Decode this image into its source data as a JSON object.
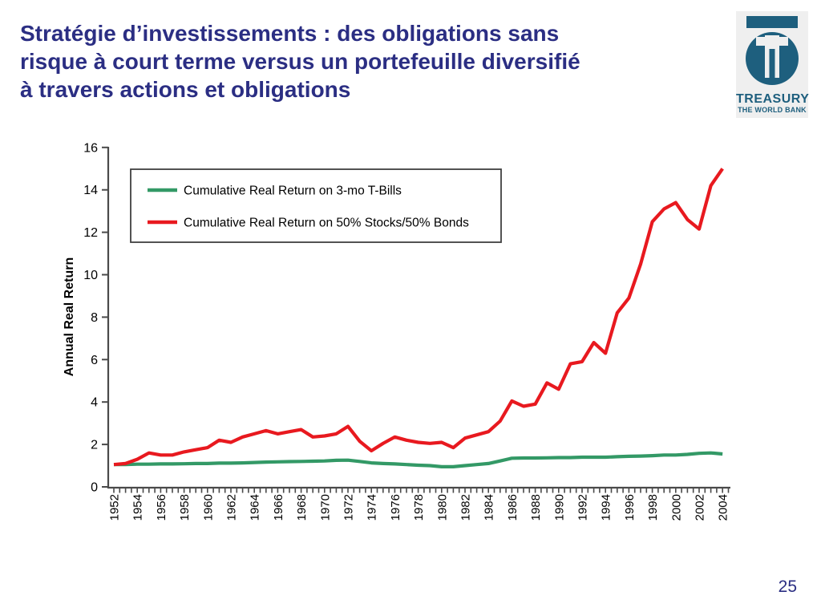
{
  "slide": {
    "title_lines": [
      "Stratégie d’investissements : des obligations sans",
      "risque à court terme versus un portefeuille diversifié",
      "à travers actions et obligations"
    ],
    "page_number": "25"
  },
  "logo": {
    "name": "treasury-the-world-bank-logo",
    "line1": "TREASURY",
    "line2": "THE WORLD BANK"
  },
  "colors": {
    "title_text": "#2B2E83",
    "logo_teal": "#1E5F7E",
    "axis": "#4A4A4A",
    "tbills_green": "#339966",
    "portfolio_red": "#E8191F"
  },
  "chart_data": {
    "type": "line",
    "title": "",
    "xlabel": "",
    "ylabel": "Annual Real Return",
    "ylim": [
      0,
      16
    ],
    "ytick_step": 2,
    "x_label_step": 2,
    "grid": false,
    "legend_position": "top-left-inside",
    "years": [
      1952,
      1953,
      1954,
      1955,
      1956,
      1957,
      1958,
      1959,
      1960,
      1961,
      1962,
      1963,
      1964,
      1965,
      1966,
      1967,
      1968,
      1969,
      1970,
      1971,
      1972,
      1973,
      1974,
      1975,
      1976,
      1977,
      1978,
      1979,
      1980,
      1981,
      1982,
      1983,
      1984,
      1985,
      1986,
      1987,
      1988,
      1989,
      1990,
      1991,
      1992,
      1993,
      1994,
      1995,
      1996,
      1997,
      1998,
      1999,
      2000,
      2001,
      2002,
      2003,
      2004
    ],
    "series": [
      {
        "name": "Cumulative Real Return on 3-mo T-Bills",
        "color": "#339966",
        "values": [
          1.05,
          1.05,
          1.07,
          1.07,
          1.08,
          1.08,
          1.09,
          1.1,
          1.1,
          1.12,
          1.12,
          1.13,
          1.15,
          1.17,
          1.18,
          1.19,
          1.2,
          1.21,
          1.22,
          1.25,
          1.26,
          1.2,
          1.13,
          1.1,
          1.08,
          1.05,
          1.02,
          1.0,
          0.95,
          0.95,
          1.0,
          1.05,
          1.1,
          1.22,
          1.35,
          1.36,
          1.36,
          1.37,
          1.38,
          1.38,
          1.4,
          1.4,
          1.4,
          1.42,
          1.44,
          1.45,
          1.47,
          1.5,
          1.5,
          1.53,
          1.58,
          1.6,
          1.55
        ]
      },
      {
        "name": "Cumulative Real Return on 50% Stocks/50% Bonds",
        "color": "#E8191F",
        "values": [
          1.05,
          1.1,
          1.3,
          1.6,
          1.5,
          1.5,
          1.65,
          1.75,
          1.85,
          2.2,
          2.1,
          2.35,
          2.5,
          2.65,
          2.5,
          2.6,
          2.7,
          2.35,
          2.4,
          2.5,
          2.85,
          2.15,
          1.7,
          2.05,
          2.35,
          2.2,
          2.1,
          2.05,
          2.1,
          1.85,
          2.3,
          2.45,
          2.6,
          3.1,
          4.05,
          3.8,
          3.9,
          4.9,
          4.6,
          5.8,
          5.9,
          6.8,
          6.3,
          8.2,
          8.9,
          10.5,
          12.5,
          13.1,
          13.4,
          12.6,
          12.15,
          14.2,
          15.0
        ]
      }
    ]
  }
}
